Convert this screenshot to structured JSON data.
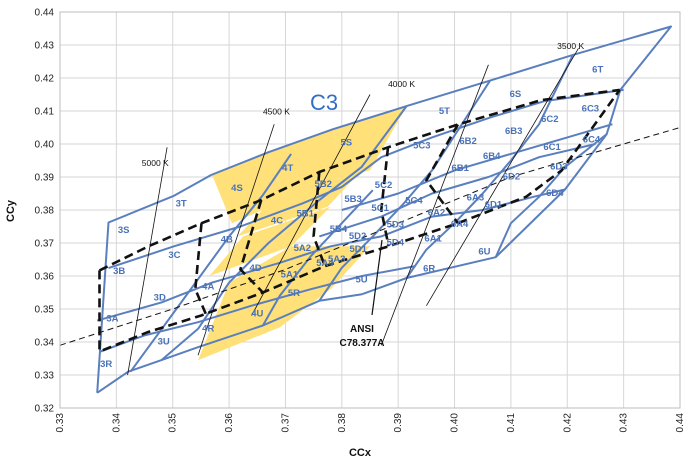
{
  "chart_data": {
    "type": "scatter",
    "xlabel": "CCx",
    "ylabel": "CCy",
    "xlim": [
      0.33,
      0.44
    ],
    "ylim": [
      0.32,
      0.44
    ],
    "xticks": [
      "0.33",
      "0.34",
      "0.35",
      "0.36",
      "0.37",
      "0.38",
      "0.39",
      "0.40",
      "0.41",
      "0.42",
      "0.43",
      "0.44"
    ],
    "yticks": [
      "0.32",
      "0.33",
      "0.34",
      "0.35",
      "0.36",
      "0.37",
      "0.38",
      "0.39",
      "0.40",
      "0.41",
      "0.42",
      "0.43",
      "0.44"
    ],
    "grid": true,
    "big_label": "C3",
    "annotation": {
      "text": "ANSI\nC78.377A",
      "lines": [
        "ANSI",
        "C78.377A"
      ]
    },
    "colors": {
      "grid_line": "#5a7fbf",
      "highlight_fill": "#ffe079",
      "bin_label": "#4a72b8",
      "big_label": "#2f6fc7",
      "black_line": "#111111"
    },
    "bin_labels": [
      {
        "text": "3S",
        "x": 0.3413,
        "y": 0.373
      },
      {
        "text": "3T",
        "x": 0.3515,
        "y": 0.381
      },
      {
        "text": "3C",
        "x": 0.3503,
        "y": 0.3655
      },
      {
        "text": "3B",
        "x": 0.3405,
        "y": 0.3606
      },
      {
        "text": "3D",
        "x": 0.3477,
        "y": 0.3526
      },
      {
        "text": "3A",
        "x": 0.3393,
        "y": 0.3462
      },
      {
        "text": "3U",
        "x": 0.3484,
        "y": 0.3392
      },
      {
        "text": "3R",
        "x": 0.3382,
        "y": 0.3325
      },
      {
        "text": "4S",
        "x": 0.3614,
        "y": 0.3857
      },
      {
        "text": "4T",
        "x": 0.3704,
        "y": 0.3918
      },
      {
        "text": "4B",
        "x": 0.3596,
        "y": 0.3701
      },
      {
        "text": "4C",
        "x": 0.3685,
        "y": 0.3759
      },
      {
        "text": "4D",
        "x": 0.3647,
        "y": 0.3615
      },
      {
        "text": "4A",
        "x": 0.3563,
        "y": 0.3559
      },
      {
        "text": "4U",
        "x": 0.365,
        "y": 0.3478
      },
      {
        "text": "4R",
        "x": 0.3563,
        "y": 0.3432
      },
      {
        "text": "5S",
        "x": 0.3808,
        "y": 0.3995
      },
      {
        "text": "5T",
        "x": 0.3982,
        "y": 0.4091
      },
      {
        "text": "5B2",
        "x": 0.3767,
        "y": 0.3869
      },
      {
        "text": "5B3",
        "x": 0.382,
        "y": 0.3824
      },
      {
        "text": "5B1",
        "x": 0.3735,
        "y": 0.378
      },
      {
        "text": "5B4",
        "x": 0.3794,
        "y": 0.3734
      },
      {
        "text": "5C2",
        "x": 0.3874,
        "y": 0.3867
      },
      {
        "text": "5C3",
        "x": 0.3942,
        "y": 0.3986
      },
      {
        "text": "5C1",
        "x": 0.3868,
        "y": 0.3797
      },
      {
        "text": "5C4",
        "x": 0.3928,
        "y": 0.382
      },
      {
        "text": "5A2",
        "x": 0.373,
        "y": 0.3676
      },
      {
        "text": "5A3",
        "x": 0.3791,
        "y": 0.3642
      },
      {
        "text": "5A1",
        "x": 0.3707,
        "y": 0.3596
      },
      {
        "text": "5A4",
        "x": 0.377,
        "y": 0.363
      },
      {
        "text": "5D2",
        "x": 0.3828,
        "y": 0.3712
      },
      {
        "text": "5D3",
        "x": 0.3895,
        "y": 0.3747
      },
      {
        "text": "5D1",
        "x": 0.3829,
        "y": 0.3672
      },
      {
        "text": "5D4",
        "x": 0.3895,
        "y": 0.3693
      },
      {
        "text": "5R",
        "x": 0.3715,
        "y": 0.354
      },
      {
        "text": "5U",
        "x": 0.3835,
        "y": 0.3581
      },
      {
        "text": "6S",
        "x": 0.4108,
        "y": 0.4143
      },
      {
        "text": "6T",
        "x": 0.4254,
        "y": 0.4217
      },
      {
        "text": "6B2",
        "x": 0.4024,
        "y": 0.4
      },
      {
        "text": "6B3",
        "x": 0.4105,
        "y": 0.4031
      },
      {
        "text": "6B1",
        "x": 0.401,
        "y": 0.3918
      },
      {
        "text": "6B4",
        "x": 0.4066,
        "y": 0.3954
      },
      {
        "text": "6C2",
        "x": 0.4169,
        "y": 0.4066
      },
      {
        "text": "6C3",
        "x": 0.4241,
        "y": 0.4098
      },
      {
        "text": "6C1",
        "x": 0.4173,
        "y": 0.3982
      },
      {
        "text": "6C4",
        "x": 0.4243,
        "y": 0.4004
      },
      {
        "text": "6A2",
        "x": 0.3968,
        "y": 0.3784
      },
      {
        "text": "6A3",
        "x": 0.4037,
        "y": 0.3829
      },
      {
        "text": "6A1",
        "x": 0.3962,
        "y": 0.3704
      },
      {
        "text": "6A4",
        "x": 0.4009,
        "y": 0.3749
      },
      {
        "text": "6D2",
        "x": 0.4101,
        "y": 0.3892
      },
      {
        "text": "6D3",
        "x": 0.4185,
        "y": 0.3922
      },
      {
        "text": "6D1",
        "x": 0.4069,
        "y": 0.3807
      },
      {
        "text": "6D4",
        "x": 0.4178,
        "y": 0.3843
      },
      {
        "text": "6R",
        "x": 0.3955,
        "y": 0.3614
      },
      {
        "text": "6U",
        "x": 0.4053,
        "y": 0.3665
      }
    ],
    "cct_labels": [
      {
        "text": "5000 K",
        "x": 0.3469,
        "y": 0.3933
      },
      {
        "text": "4500 K",
        "x": 0.3684,
        "y": 0.4089
      },
      {
        "text": "4000 K",
        "x": 0.3906,
        "y": 0.4172
      },
      {
        "text": "3500 K",
        "x": 0.4206,
        "y": 0.4288
      }
    ]
  }
}
